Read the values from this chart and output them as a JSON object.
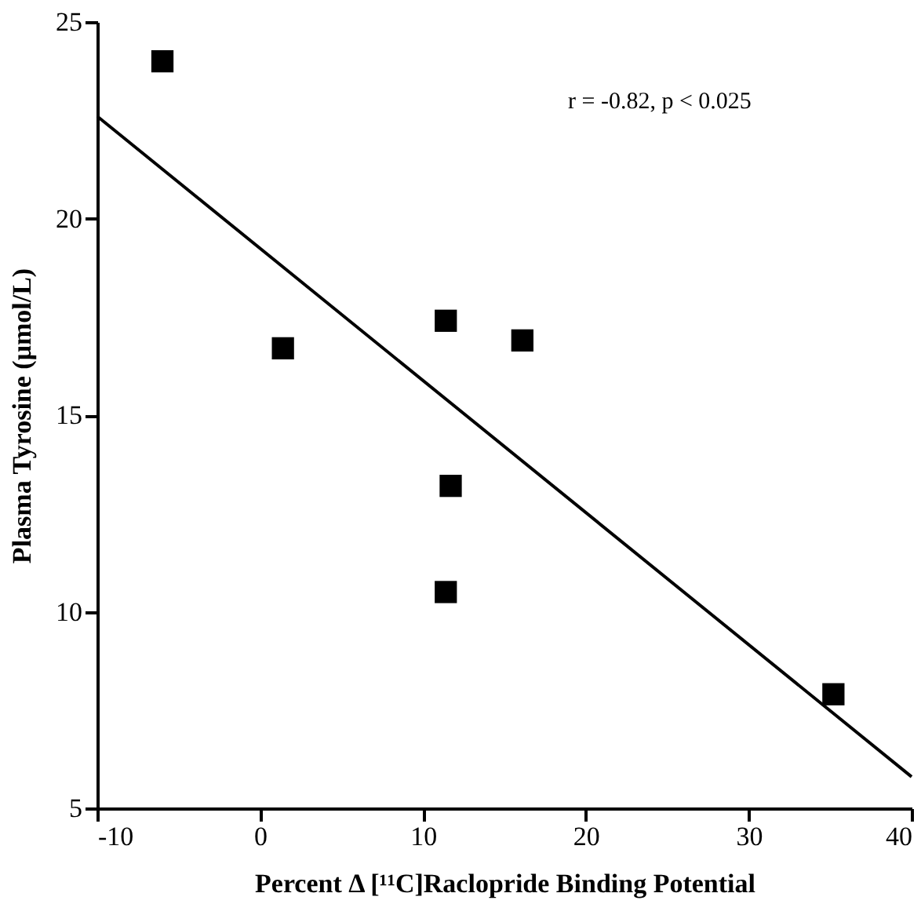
{
  "chart_data": {
    "type": "scatter",
    "xlabel": "Percent Δ [¹¹C]Raclopride Binding Potential",
    "ylabel": "Plasma Tyrosine (μmol/L)",
    "annotations": [
      "r = -0.82, p < 0.025"
    ],
    "x": [
      -6.0,
      1.4,
      11.4,
      16.1,
      11.7,
      11.4,
      35.2
    ],
    "series": [
      {
        "color": "#000000",
        "marker": "square",
        "values": [
          24.0,
          16.7,
          17.4,
          16.9,
          13.2,
          10.5,
          7.9
        ]
      },
      {
        "type": "line",
        "color": "#000000",
        "marker": "none",
        "line_style": "solid",
        "x": [
          -10,
          40
        ],
        "values": [
          22.6,
          5.8
        ]
      }
    ],
    "xlim": [
      -10,
      40
    ],
    "xticks": [
      -10,
      0,
      10,
      20,
      30,
      40
    ],
    "ylim": [
      5,
      25
    ],
    "yticks": [
      5,
      10,
      15,
      20,
      25
    ],
    "grid": false
  }
}
